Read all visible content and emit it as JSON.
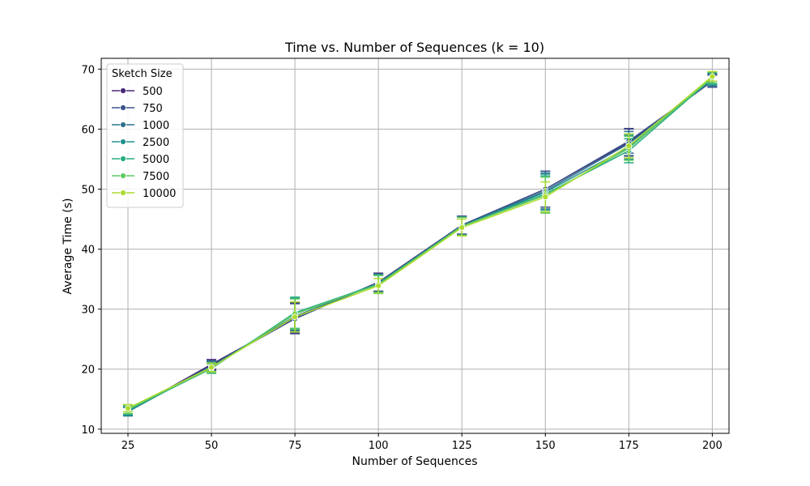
{
  "chart_data": {
    "type": "line",
    "title": "Time vs. Number of Sequences (k = 10)",
    "xlabel": "Number of Sequences",
    "ylabel": "Average Time (s)",
    "x": [
      25,
      50,
      75,
      100,
      125,
      150,
      175,
      200
    ],
    "xticks": [
      25,
      50,
      75,
      100,
      125,
      150,
      175,
      200
    ],
    "yticks": [
      10,
      20,
      30,
      40,
      50,
      60,
      70
    ],
    "xlim": [
      17,
      205
    ],
    "ylim": [
      9.3,
      71.8
    ],
    "grid": true,
    "legend": {
      "title": "Sketch Size",
      "placement": "top-left"
    },
    "series": [
      {
        "name": "500",
        "color": "#482878",
        "values": [
          13.0,
          20.8,
          28.5,
          34.5,
          44.0,
          50.0,
          57.8,
          68.0
        ],
        "errors": [
          0.7,
          0.8,
          2.5,
          1.5,
          1.5,
          3.0,
          2.3,
          1.0
        ]
      },
      {
        "name": "750",
        "color": "#3b528b",
        "values": [
          13.0,
          20.6,
          28.4,
          34.4,
          44.0,
          50.0,
          58.0,
          68.0
        ],
        "errors": [
          0.7,
          0.8,
          2.5,
          1.5,
          1.5,
          3.0,
          2.0,
          1.0
        ]
      },
      {
        "name": "1000",
        "color": "#2c728e",
        "values": [
          12.9,
          20.5,
          28.8,
          34.3,
          43.9,
          49.7,
          57.6,
          68.2
        ],
        "errors": [
          0.7,
          0.8,
          2.4,
          1.5,
          1.5,
          3.0,
          2.0,
          1.0
        ]
      },
      {
        "name": "2500",
        "color": "#21918c",
        "values": [
          13.0,
          20.3,
          29.2,
          34.3,
          43.8,
          49.5,
          57.0,
          68.4
        ],
        "errors": [
          0.7,
          0.8,
          2.6,
          1.4,
          1.5,
          3.0,
          2.0,
          1.0
        ]
      },
      {
        "name": "5000",
        "color": "#28ae80",
        "values": [
          13.2,
          20.1,
          29.4,
          34.2,
          43.8,
          49.2,
          56.4,
          68.5
        ],
        "errors": [
          0.7,
          0.8,
          2.6,
          1.5,
          1.5,
          3.0,
          2.0,
          1.0
        ]
      },
      {
        "name": "7500",
        "color": "#5ec962",
        "values": [
          13.3,
          20.2,
          29.2,
          34.1,
          43.8,
          49.0,
          56.8,
          68.6
        ],
        "errors": [
          0.7,
          0.8,
          2.5,
          1.5,
          1.5,
          3.0,
          2.0,
          0.9
        ]
      },
      {
        "name": "10000",
        "color": "#addc30",
        "values": [
          13.5,
          20.3,
          28.7,
          33.9,
          43.6,
          48.7,
          57.2,
          68.8
        ],
        "errors": [
          0.6,
          0.7,
          2.5,
          1.2,
          1.4,
          2.5,
          2.0,
          0.8
        ]
      }
    ]
  }
}
